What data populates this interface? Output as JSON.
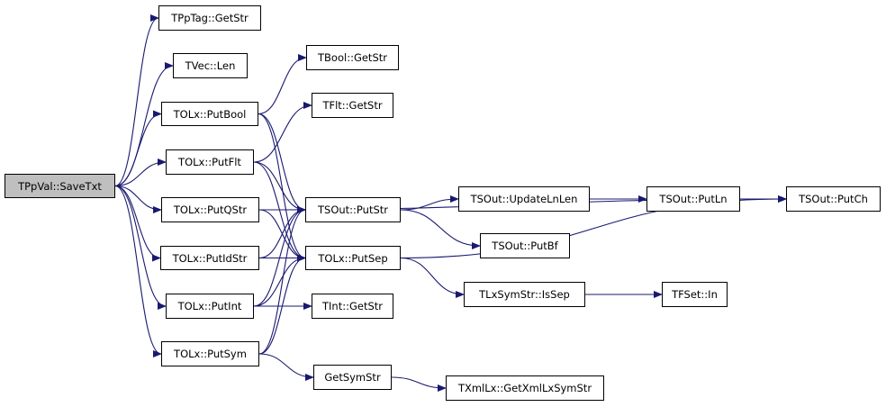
{
  "colors": {
    "edge": "#191970",
    "root_fill": "#bfbfbf",
    "node_fill": "#ffffff"
  },
  "nodes": {
    "savetxt": "TPpVal::SaveTxt",
    "pptag_getstr": "TPpTag::GetStr",
    "tvec_len": "TVec::Len",
    "putbool": "TOLx::PutBool",
    "putflt": "TOLx::PutFlt",
    "putqstr": "TOLx::PutQStr",
    "putidstr": "TOLx::PutIdStr",
    "putint": "TOLx::PutInt",
    "putsym": "TOLx::PutSym",
    "bool_getstr": "TBool::GetStr",
    "flt_getstr": "TFlt::GetStr",
    "sout_putstr": "TSOut::PutStr",
    "putsep": "TOLx::PutSep",
    "int_getstr": "TInt::GetStr",
    "getsymstr": "GetSymStr",
    "updatelnlen": "TSOut::UpdateLnLen",
    "putbf": "TSOut::PutBf",
    "issep": "TLxSymStr::IsSep",
    "putln": "TSOut::PutLn",
    "fset_in": "TFSet::In",
    "putch": "TSOut::PutCh",
    "getxmllxsymstr": "TXmlLx::GetXmlLxSymStr"
  },
  "root": "savetxt",
  "edges": [
    [
      "savetxt",
      "pptag_getstr"
    ],
    [
      "savetxt",
      "tvec_len"
    ],
    [
      "savetxt",
      "putbool"
    ],
    [
      "savetxt",
      "putflt"
    ],
    [
      "savetxt",
      "putqstr"
    ],
    [
      "savetxt",
      "putidstr"
    ],
    [
      "savetxt",
      "putint"
    ],
    [
      "savetxt",
      "putsym"
    ],
    [
      "putbool",
      "bool_getstr"
    ],
    [
      "putbool",
      "sout_putstr"
    ],
    [
      "putbool",
      "putsep"
    ],
    [
      "putflt",
      "flt_getstr"
    ],
    [
      "putflt",
      "sout_putstr"
    ],
    [
      "putflt",
      "putsep"
    ],
    [
      "putqstr",
      "sout_putstr"
    ],
    [
      "putqstr",
      "putsep"
    ],
    [
      "putqstr",
      "putch"
    ],
    [
      "putidstr",
      "sout_putstr"
    ],
    [
      "putidstr",
      "putsep"
    ],
    [
      "putint",
      "sout_putstr"
    ],
    [
      "putint",
      "putsep"
    ],
    [
      "putint",
      "int_getstr"
    ],
    [
      "putsym",
      "sout_putstr"
    ],
    [
      "putsym",
      "putsep"
    ],
    [
      "putsym",
      "getsymstr"
    ],
    [
      "sout_putstr",
      "updatelnlen"
    ],
    [
      "sout_putstr",
      "putbf"
    ],
    [
      "updatelnlen",
      "putln"
    ],
    [
      "putln",
      "putch"
    ],
    [
      "putsep",
      "issep"
    ],
    [
      "putsep",
      "putch"
    ],
    [
      "issep",
      "fset_in"
    ],
    [
      "getsymstr",
      "getxmllxsymstr"
    ]
  ]
}
